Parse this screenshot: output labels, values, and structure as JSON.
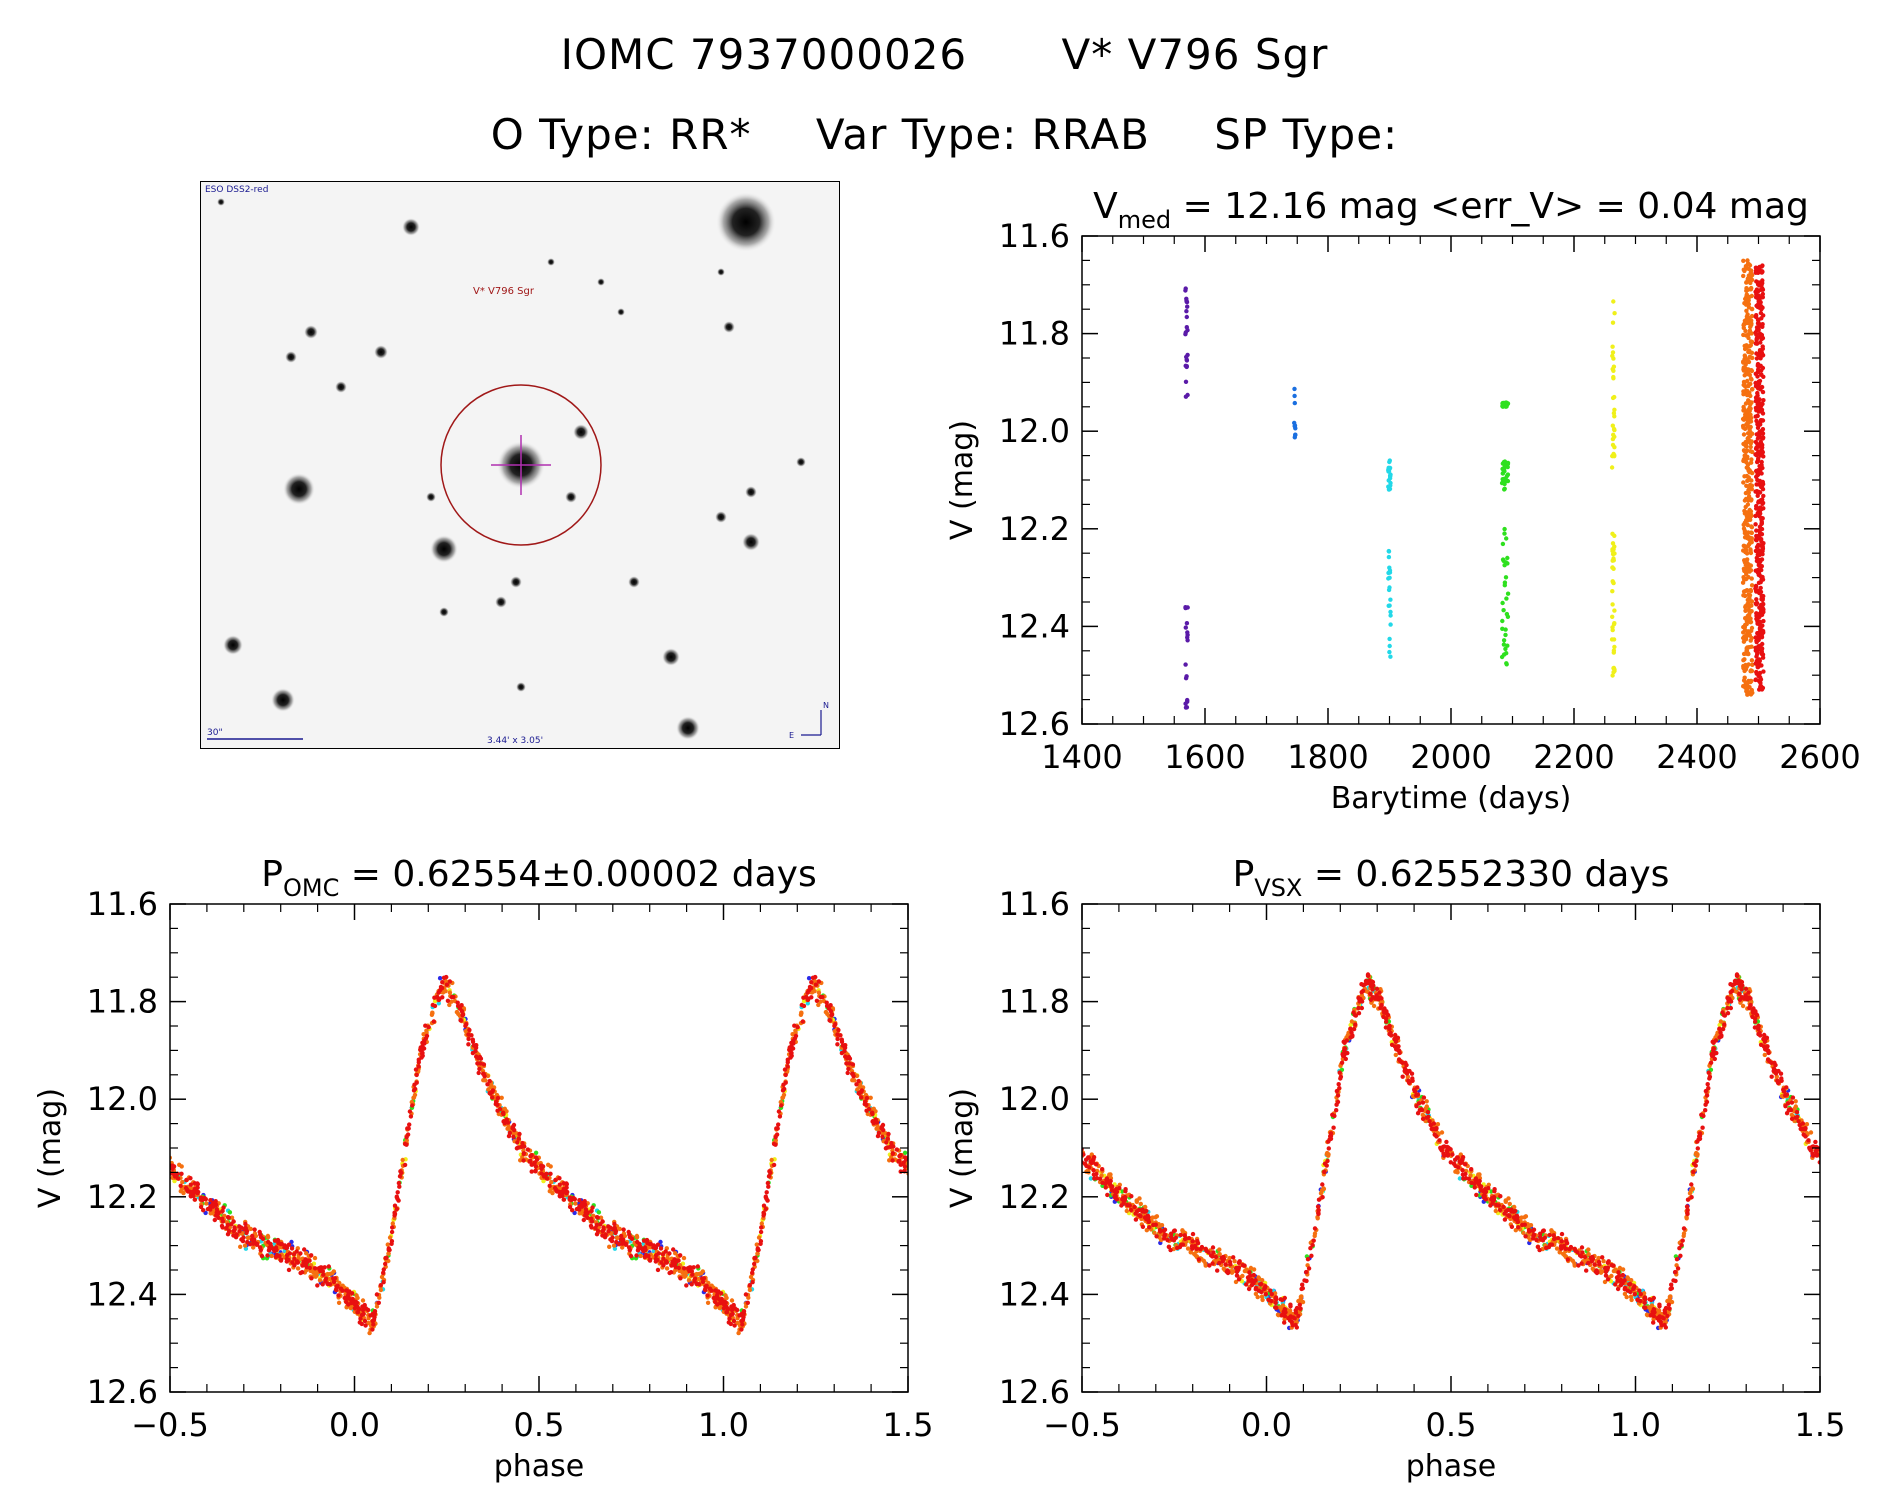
{
  "header": {
    "id_label": "IOMC 7937000026",
    "star_label": "V* V796 Sgr",
    "otype": "O Type: RR*",
    "vartype": "Var Type: RRAB",
    "sptype": "SP Type:"
  },
  "sky_image": {
    "survey_label": "ESO DSS2-red",
    "target_label": "V* V796 Sgr",
    "scale_label": "30\"",
    "size_label": "3.44' x 3.05'",
    "north_label": "N",
    "east_label": "E"
  },
  "chart_data": [
    {
      "type": "scatter",
      "name": "light-curve",
      "title_main": "V",
      "title_sub": "med",
      "title_rest": " = 12.16 mag <err_V> = 0.04 mag",
      "xlabel": "Barytime (days)",
      "ylabel": "V (mag)",
      "xlim": [
        1400,
        2600
      ],
      "ylim": [
        12.6,
        11.6
      ],
      "xticks": [
        1400,
        1600,
        1800,
        2000,
        2200,
        2400,
        2600
      ],
      "yticks": [
        11.6,
        11.8,
        12.0,
        12.2,
        12.4,
        12.6
      ],
      "series": [
        {
          "name": "season-1",
          "color": "#5a1aa8",
          "x_range": [
            1568,
            1572
          ],
          "y_ranges": [
            [
              11.7,
              11.93
            ],
            [
              12.35,
              12.57
            ]
          ],
          "n": 40
        },
        {
          "name": "season-2",
          "color": "#1a6fe0",
          "x_range": [
            1745,
            1747
          ],
          "y_ranges": [
            [
              11.91,
              12.02
            ]
          ],
          "n": 10
        },
        {
          "name": "season-3",
          "color": "#22d8e8",
          "x_range": [
            1898,
            1902
          ],
          "y_ranges": [
            [
              12.06,
              12.12
            ],
            [
              12.24,
              12.49
            ]
          ],
          "n": 40
        },
        {
          "name": "season-4",
          "color": "#2ee01e",
          "x_range": [
            2083,
            2093
          ],
          "y_ranges": [
            [
              11.94,
              11.95
            ],
            [
              12.06,
              12.12
            ],
            [
              12.2,
              12.48
            ]
          ],
          "n": 90
        },
        {
          "name": "season-5",
          "color": "#f0f01a",
          "x_range": [
            2262,
            2266
          ],
          "y_ranges": [
            [
              11.72,
              12.08
            ],
            [
              12.2,
              12.51
            ]
          ],
          "n": 70
        },
        {
          "name": "season-6",
          "color": "#f57010",
          "x_range": [
            2475,
            2490
          ],
          "y_ranges": [
            [
              11.65,
              12.54
            ]
          ],
          "n": 450
        },
        {
          "name": "season-7",
          "color": "#e81010",
          "x_range": [
            2495,
            2508
          ],
          "y_ranges": [
            [
              11.66,
              12.53
            ]
          ],
          "n": 450
        }
      ]
    },
    {
      "type": "scatter",
      "name": "phase-omc",
      "title_main": "P",
      "title_sub": "OMC",
      "title_rest": " = 0.62554±0.00002 days",
      "xlabel": "phase",
      "ylabel": "V (mag)",
      "xlim": [
        -0.5,
        1.5
      ],
      "ylim": [
        12.6,
        11.6
      ],
      "xticks": [
        -0.5,
        0.0,
        0.5,
        1.0,
        1.5
      ],
      "yticks": [
        11.6,
        11.8,
        12.0,
        12.2,
        12.4,
        12.6
      ],
      "phase_shift": 0.0,
      "curve_phase": [
        0.0,
        0.05,
        0.1,
        0.18,
        0.24,
        0.28,
        0.35,
        0.45,
        0.55,
        0.7,
        0.85,
        0.95,
        1.0
      ],
      "curve_mag": [
        12.42,
        12.46,
        12.28,
        11.9,
        11.76,
        11.8,
        11.95,
        12.1,
        12.18,
        12.28,
        12.33,
        12.38,
        12.42
      ],
      "series": [
        {
          "name": "season-1",
          "color": "#2a2ae8",
          "n": 40
        },
        {
          "name": "season-3",
          "color": "#22d8e8",
          "n": 40
        },
        {
          "name": "season-4",
          "color": "#2ee01e",
          "n": 60
        },
        {
          "name": "season-5",
          "color": "#f0f01a",
          "n": 50
        },
        {
          "name": "season-6",
          "color": "#f57010",
          "n": 420
        },
        {
          "name": "season-7",
          "color": "#e81010",
          "n": 420
        }
      ]
    },
    {
      "type": "scatter",
      "name": "phase-vsx",
      "title_main": "P",
      "title_sub": "VSX",
      "title_rest": " = 0.62552330 days",
      "xlabel": "phase",
      "ylabel": "V (mag)",
      "xlim": [
        -0.5,
        1.5
      ],
      "ylim": [
        12.6,
        11.6
      ],
      "xticks": [
        -0.5,
        0.0,
        0.5,
        1.0,
        1.5
      ],
      "yticks": [
        11.6,
        11.8,
        12.0,
        12.2,
        12.4,
        12.6
      ],
      "phase_shift": 0.03,
      "curve_phase": [
        0.0,
        0.05,
        0.1,
        0.18,
        0.24,
        0.28,
        0.35,
        0.45,
        0.55,
        0.7,
        0.85,
        0.95,
        1.0
      ],
      "curve_mag": [
        12.42,
        12.46,
        12.28,
        11.9,
        11.76,
        11.8,
        11.95,
        12.1,
        12.18,
        12.28,
        12.33,
        12.38,
        12.42
      ],
      "series": [
        {
          "name": "season-1",
          "color": "#2a2ae8",
          "n": 40
        },
        {
          "name": "season-3",
          "color": "#22d8e8",
          "n": 40
        },
        {
          "name": "season-4",
          "color": "#2ee01e",
          "n": 60
        },
        {
          "name": "season-5",
          "color": "#f0f01a",
          "n": 50
        },
        {
          "name": "season-6",
          "color": "#f57010",
          "n": 420
        },
        {
          "name": "season-7",
          "color": "#e81010",
          "n": 420
        }
      ]
    }
  ]
}
